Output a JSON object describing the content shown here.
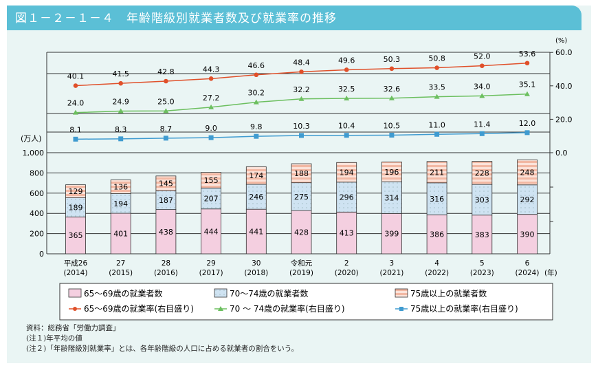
{
  "header": {
    "title": "図１－２－１－４　年齢階級別就業者数及び就業率の推移"
  },
  "notes": [
    "資料：総務省「労働力調査」",
    "(注１)年平均の値",
    "(注２)「年齢階級別就業率」とは、各年齢階級の人口に占める就業者の割合をいう。"
  ],
  "colors": {
    "header": "#5bbfd6",
    "bar65": "#f4cfe0",
    "bar70": "#cfe3f2",
    "bar75": "#f2b8a3",
    "line65": "#e0502a",
    "line70": "#6cbf5f",
    "line75": "#3f9bd0"
  },
  "chart_data": {
    "type": "bar+line",
    "categories": [
      "平成26\n(2014)",
      "27\n(2015)",
      "28\n(2016)",
      "29\n(2017)",
      "30\n(2018)",
      "令和元\n(2019)",
      "2\n(2020)",
      "3\n(2021)",
      "4\n(2022)",
      "5\n(2023)",
      "6\n(2024)"
    ],
    "x_unit": "(年)",
    "left_axis": {
      "label": "(万人)",
      "ticks": [
        "0",
        "200",
        "400",
        "600",
        "800",
        "1,000"
      ],
      "range": [
        0,
        1000
      ]
    },
    "right_axis": {
      "label": "(%)",
      "ticks": [
        "0.0",
        "20.0",
        "40.0",
        "60.0"
      ],
      "range": [
        0,
        60
      ]
    },
    "bars": [
      {
        "name": "65～69歳の就業者数",
        "values": [
          365,
          401,
          438,
          444,
          441,
          428,
          413,
          399,
          386,
          383,
          390
        ]
      },
      {
        "name": "70～74歳の就業者数",
        "values": [
          189,
          194,
          187,
          207,
          246,
          275,
          296,
          314,
          316,
          303,
          292
        ]
      },
      {
        "name": "75歳以上の就業者数",
        "values": [
          129,
          136,
          145,
          155,
          174,
          188,
          194,
          196,
          211,
          228,
          248
        ]
      }
    ],
    "lines": [
      {
        "name": "65～69歳の就業率(右目盛り)",
        "values": [
          40.1,
          41.5,
          42.8,
          44.3,
          46.6,
          48.4,
          49.6,
          50.3,
          50.8,
          52.0,
          53.6
        ]
      },
      {
        "name": "70 ～ 74歳の就業率(右目盛り)",
        "values": [
          24.0,
          24.9,
          25.0,
          27.2,
          30.2,
          32.2,
          32.5,
          32.6,
          33.5,
          34.0,
          35.1
        ]
      },
      {
        "name": "75歳以上の就業率(右目盛り)",
        "values": [
          8.1,
          8.3,
          8.7,
          9.0,
          9.8,
          10.3,
          10.4,
          10.5,
          11.0,
          11.4,
          12.0
        ]
      }
    ]
  }
}
